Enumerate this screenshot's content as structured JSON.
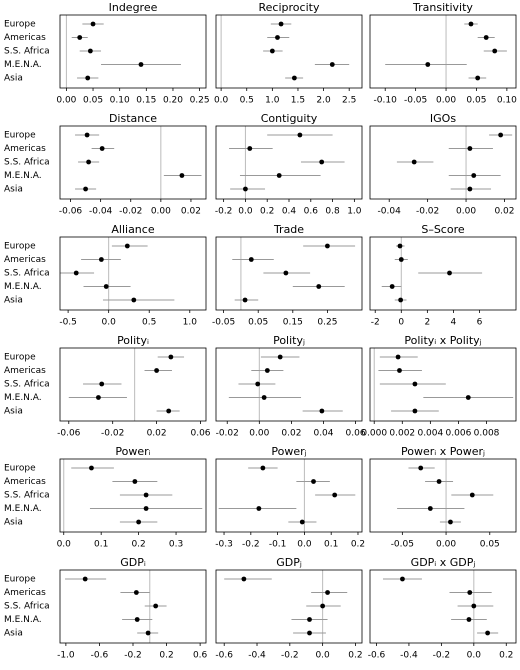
{
  "chart_data": [
    {
      "type": "dot",
      "title": "Indegree",
      "categories": [
        "Europe",
        "Americas",
        "S.S. Africa",
        "M.E.N.A.",
        "Asia"
      ],
      "values": [
        0.05,
        0.025,
        0.045,
        0.14,
        0.04
      ],
      "lower": [
        0.03,
        0.01,
        0.025,
        0.065,
        0.02
      ],
      "upper": [
        0.07,
        0.04,
        0.065,
        0.215,
        0.06
      ],
      "xlim": [
        -0.012,
        0.262
      ],
      "xticks": [
        {
          "value": 0,
          "label": "0.00"
        },
        0.05,
        {
          "value": 0.1,
          "label": "0.10"
        },
        0.15,
        {
          "value": 0.2,
          "label": "0.20"
        },
        0.25
      ],
      "refline": 0
    },
    {
      "type": "dot",
      "title": "Reciprocity",
      "values": [
        1.17,
        1.1,
        1.0,
        2.17,
        1.43
      ],
      "lower": [
        0.97,
        0.9,
        0.82,
        1.83,
        1.25
      ],
      "upper": [
        1.37,
        1.33,
        1.2,
        2.5,
        1.6
      ],
      "xlim": [
        -0.1,
        2.75
      ],
      "xticks": [
        {
          "value": 0,
          "label": "0.0"
        },
        0.5,
        {
          "value": 1,
          "label": "1.0"
        },
        1.5,
        {
          "value": 2,
          "label": "2.0"
        },
        2.5
      ],
      "refline": 0
    },
    {
      "type": "dot",
      "title": "Transitivity",
      "values": [
        0.041,
        0.066,
        0.08,
        -0.03,
        0.052
      ],
      "lower": [
        0.03,
        0.052,
        0.062,
        -0.1,
        0.037
      ],
      "upper": [
        0.052,
        0.08,
        0.1,
        0.034,
        0.066
      ],
      "xlim": [
        -0.125,
        0.115
      ],
      "xticks": [
        {
          "value": -0.1,
          "label": "-0.10"
        },
        -0.05,
        {
          "value": 0,
          "label": "0.00"
        },
        0.05,
        {
          "value": 0.1,
          "label": "0.10"
        }
      ],
      "refline": 0
    },
    {
      "type": "dot",
      "title": "Distance",
      "categories": [
        "Europe",
        "Americas",
        "S.S. Africa",
        "M.E.N.A.",
        "Asia"
      ],
      "values": [
        -0.049,
        -0.039,
        -0.048,
        0.014,
        -0.05
      ],
      "lower": [
        -0.057,
        -0.046,
        -0.055,
        0.002,
        -0.057
      ],
      "upper": [
        -0.041,
        -0.031,
        -0.041,
        0.027,
        -0.043
      ],
      "xlim": [
        -0.067,
        0.03
      ],
      "xticks": [
        -0.06,
        -0.04,
        -0.02,
        {
          "value": 0,
          "label": "0.00"
        },
        0.02
      ],
      "refline": 0
    },
    {
      "type": "dot",
      "title": "Contiguity",
      "values": [
        0.5,
        0.04,
        0.7,
        0.31,
        0.0
      ],
      "lower": [
        0.2,
        -0.15,
        0.51,
        -0.05,
        -0.14
      ],
      "upper": [
        0.8,
        0.25,
        0.91,
        0.69,
        0.18
      ],
      "xlim": [
        -0.27,
        1.07
      ],
      "xticks": [
        -0.2,
        {
          "value": 0,
          "label": "0.0"
        },
        0.2,
        0.4,
        0.6,
        0.8,
        {
          "value": 1,
          "label": "1.0"
        }
      ],
      "refline": 0
    },
    {
      "type": "dot",
      "title": "IGOs",
      "values": [
        0.018,
        0.002,
        -0.027,
        0.004,
        0.002
      ],
      "lower": [
        0.012,
        -0.009,
        -0.036,
        -0.009,
        -0.008
      ],
      "upper": [
        0.024,
        0.014,
        -0.017,
        0.018,
        0.013
      ],
      "xlim": [
        -0.05,
        0.026
      ],
      "xticks": [
        -0.04,
        -0.02,
        {
          "value": 0,
          "label": "0.00"
        },
        0.02
      ],
      "refline": 0
    },
    {
      "type": "dot",
      "title": "Alliance",
      "categories": [
        "Europe",
        "Americas",
        "S.S. Africa",
        "M.E.N.A.",
        "Asia"
      ],
      "values": [
        0.23,
        -0.09,
        -0.4,
        -0.03,
        0.31
      ],
      "lower": [
        0.04,
        -0.34,
        -0.6,
        -0.31,
        -0.07
      ],
      "upper": [
        0.48,
        0.15,
        -0.18,
        0.27,
        0.81
      ],
      "xlim": [
        -0.6,
        1.2
      ],
      "xticks": [
        -0.5,
        {
          "value": 0,
          "label": "0.0"
        },
        0.5,
        {
          "value": 1,
          "label": "1.0"
        }
      ],
      "refline": 0
    },
    {
      "type": "dot",
      "title": "Trade",
      "values": [
        0.25,
        0.03,
        0.13,
        0.225,
        0.012
      ],
      "lower": [
        0.18,
        -0.025,
        0.065,
        0.15,
        -0.018
      ],
      "upper": [
        0.33,
        0.095,
        0.2,
        0.3,
        0.05
      ],
      "xlim": [
        -0.072,
        0.35
      ],
      "xticks": [
        -0.05,
        0.05,
        0.15,
        0.25
      ],
      "refline": 0
    },
    {
      "type": "dot",
      "title": "S–Score",
      "values": [
        -0.1,
        0,
        3.7,
        -0.7,
        -0.05
      ],
      "lower": [
        -0.4,
        -0.5,
        1.3,
        -1.5,
        -0.5
      ],
      "upper": [
        0.25,
        0.5,
        6.2,
        0,
        0.4
      ],
      "xlim": [
        -2.4,
        8.8
      ],
      "xticks": [
        -2,
        0,
        2,
        4,
        6
      ],
      "refline": 0
    },
    {
      "type": "dot",
      "title": "Polityᵢ",
      "categories": [
        "Europe",
        "Americas",
        "S.S. Africa",
        "M.E.N.A.",
        "Asia"
      ],
      "values": [
        0.033,
        0.02,
        -0.03,
        -0.033,
        0.031
      ],
      "lower": [
        0.021,
        0.009,
        -0.047,
        -0.06,
        0.02
      ],
      "upper": [
        0.045,
        0.034,
        -0.012,
        -0.007,
        0.041
      ],
      "xlim": [
        -0.068,
        0.065
      ],
      "xticks": [
        -0.06,
        -0.02,
        0.02,
        0.06
      ],
      "refline": 0
    },
    {
      "type": "dot",
      "title": "Polityⱼ",
      "values": [
        0.013,
        0.005,
        -0.001,
        0.003,
        0.039
      ],
      "lower": [
        0.001,
        -0.005,
        -0.013,
        -0.019,
        0.027
      ],
      "upper": [
        0.025,
        0.015,
        0.01,
        0.026,
        0.052
      ],
      "xlim": [
        -0.027,
        0.064
      ],
      "xticks": [
        -0.02,
        {
          "value": 0,
          "label": "0.00"
        },
        0.02,
        0.04,
        0.06
      ],
      "refline": 0
    },
    {
      "type": "dot",
      "title": "Polityᵢ x Polityⱼ",
      "values": [
        0.0017,
        0.0018,
        0.0029,
        0.0067,
        0.0029
      ],
      "lower": [
        0.0004,
        0.0003,
        0.0004,
        0.0035,
        0.0012
      ],
      "upper": [
        0.0031,
        0.0034,
        0.0051,
        0.0099,
        0.0046
      ],
      "xlim": [
        -0.0003,
        0.0101
      ],
      "xticks": [
        {
          "value": 0,
          "label": "0.000"
        },
        0.002,
        0.004,
        0.006,
        0.008
      ],
      "refline": 0
    },
    {
      "type": "dot",
      "title": "Powerᵢ",
      "categories": [
        "Europe",
        "Americas",
        "S.S. Africa",
        "M.E.N.A.",
        "Asia"
      ],
      "values": [
        0.074,
        0.19,
        0.22,
        0.22,
        0.2
      ],
      "lower": [
        0.02,
        0.13,
        0.15,
        0.07,
        0.15
      ],
      "upper": [
        0.134,
        0.25,
        0.29,
        0.37,
        0.25
      ],
      "xlim": [
        -0.01,
        0.38
      ],
      "xticks": [
        {
          "value": 0,
          "label": "0.0"
        },
        0.1,
        0.2,
        0.3
      ],
      "refline": 0
    },
    {
      "type": "dot",
      "title": "Powerⱼ",
      "values": [
        -0.155,
        0.034,
        0.113,
        -0.17,
        -0.008
      ],
      "lower": [
        -0.21,
        -0.03,
        0.04,
        -0.32,
        -0.06
      ],
      "upper": [
        -0.1,
        0.095,
        0.19,
        -0.03,
        0.045
      ],
      "xlim": [
        -0.33,
        0.215
      ],
      "xticks": [
        -0.3,
        -0.2,
        -0.1,
        {
          "value": 0,
          "label": "0.0"
        },
        0.1,
        0.2
      ],
      "refline": 0
    },
    {
      "type": "dot",
      "title": "Powerᵢ x Powerⱼ",
      "values": [
        -0.029,
        -0.008,
        0.03,
        -0.018,
        0.005
      ],
      "lower": [
        -0.043,
        -0.024,
        0.006,
        -0.056,
        -0.007
      ],
      "upper": [
        -0.013,
        0.008,
        0.054,
        0.021,
        0.017
      ],
      "xlim": [
        -0.087,
        0.08
      ],
      "xticks": [
        -0.05,
        {
          "value": 0,
          "label": "0.00"
        },
        0.05
      ],
      "refline": 0
    },
    {
      "type": "dot",
      "title": "GDPᵢ",
      "categories": [
        "Europe",
        "Americas",
        "S.S. Africa",
        "M.E.N.A.",
        "Asia"
      ],
      "values": [
        -0.77,
        -0.16,
        0.07,
        -0.15,
        -0.02
      ],
      "lower": [
        -1.01,
        -0.35,
        -0.06,
        -0.33,
        -0.15
      ],
      "upper": [
        -0.52,
        0,
        0.2,
        0.03,
        0.1
      ],
      "xlim": [
        -1.07,
        0.67
      ],
      "xticks": [
        {
          "value": -1,
          "label": "-1.0"
        },
        -0.6,
        -0.2,
        0.2,
        0.6
      ],
      "refline": 0
    },
    {
      "type": "dot",
      "title": "GDPⱼ",
      "values": [
        -0.48,
        0.03,
        0,
        -0.08,
        -0.08
      ],
      "lower": [
        -0.6,
        -0.07,
        -0.1,
        -0.19,
        -0.18
      ],
      "upper": [
        -0.31,
        0.15,
        0.11,
        0.03,
        0.02
      ],
      "xlim": [
        -0.65,
        0.24
      ],
      "xticks": [
        -0.6,
        -0.4,
        -0.2,
        {
          "value": 0,
          "label": "0.0"
        },
        0.2
      ],
      "refline": 0
    },
    {
      "type": "dot",
      "title": "GDPᵢ x GDPⱼ",
      "values": [
        -0.44,
        -0.025,
        0,
        -0.03,
        0.085
      ],
      "lower": [
        -0.56,
        -0.15,
        -0.1,
        -0.14,
        0.02
      ],
      "upper": [
        -0.32,
        0.11,
        0.12,
        0.08,
        0.15
      ],
      "xlim": [
        -0.64,
        0.26
      ],
      "xticks": [
        -0.6,
        -0.4,
        -0.2,
        {
          "value": 0,
          "label": "0.0"
        },
        0.2
      ],
      "refline": 0
    }
  ]
}
